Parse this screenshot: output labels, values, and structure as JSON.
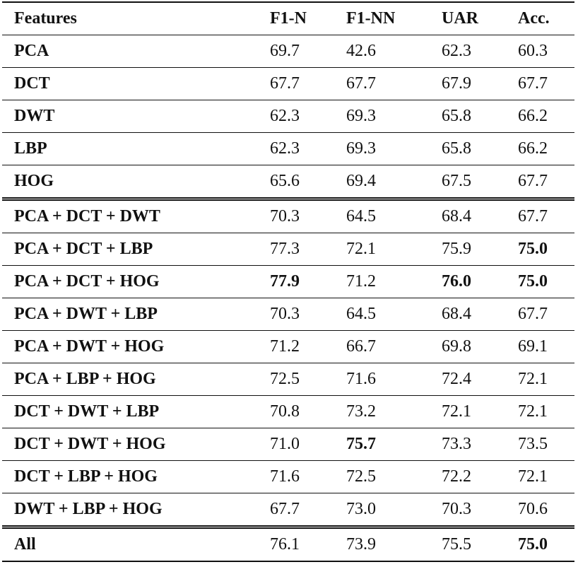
{
  "table": {
    "header": [
      "Features",
      "F1-N",
      "F1-NN",
      "UAR",
      "Acc."
    ],
    "rows": [
      [
        "PCA",
        "69.7",
        "42.6",
        "62.3",
        "60.3"
      ],
      [
        "DCT",
        "67.7",
        "67.7",
        "67.9",
        "67.7"
      ],
      [
        "DWT",
        "62.3",
        "69.3",
        "65.8",
        "66.2"
      ],
      [
        "LBP",
        "62.3",
        "69.3",
        "65.8",
        "66.2"
      ],
      [
        "HOG",
        "65.6",
        "69.4",
        "67.5",
        "67.7"
      ],
      [
        "PCA + DCT + DWT",
        "70.3",
        "64.5",
        "68.4",
        "67.7"
      ],
      [
        "PCA + DCT + LBP",
        "77.3",
        "72.1",
        "75.9",
        "75.0"
      ],
      [
        "PCA + DCT + HOG",
        "77.9",
        "71.2",
        "76.0",
        "75.0"
      ],
      [
        "PCA + DWT + LBP",
        "70.3",
        "64.5",
        "68.4",
        "67.7"
      ],
      [
        "PCA + DWT + HOG",
        "71.2",
        "66.7",
        "69.8",
        "69.1"
      ],
      [
        "PCA + LBP + HOG",
        "72.5",
        "71.6",
        "72.4",
        "72.1"
      ],
      [
        "DCT + DWT + LBP",
        "70.8",
        "73.2",
        "72.1",
        "72.1"
      ],
      [
        "DCT + DWT + HOG",
        "71.0",
        "75.7",
        "73.3",
        "73.5"
      ],
      [
        "DCT + LBP + HOG",
        "71.6",
        "72.5",
        "72.2",
        "72.1"
      ],
      [
        "DWT + LBP + HOG",
        "67.7",
        "73.0",
        "70.3",
        "70.6"
      ],
      [
        "All",
        "76.1",
        "73.9",
        "75.5",
        "75.0"
      ]
    ],
    "bold": [
      [
        6,
        4
      ],
      [
        7,
        1
      ],
      [
        7,
        3
      ],
      [
        7,
        4
      ],
      [
        12,
        2
      ],
      [
        15,
        4
      ]
    ],
    "double_rule_before": [
      5,
      15
    ]
  }
}
